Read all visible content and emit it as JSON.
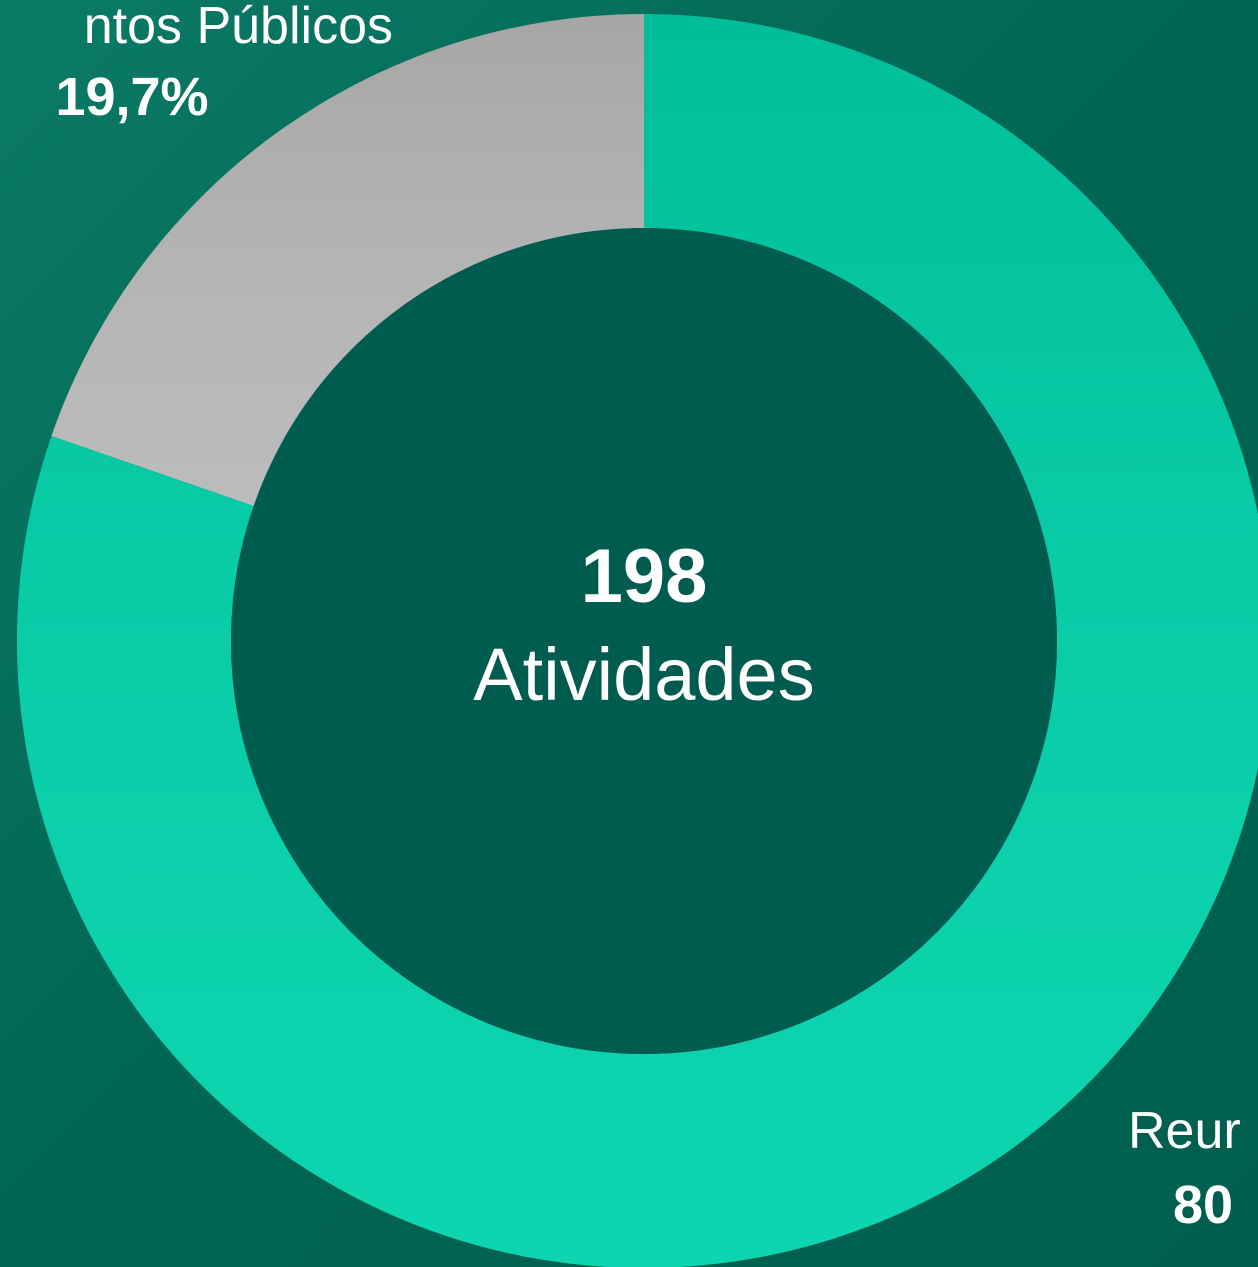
{
  "chart_data": {
    "type": "donut",
    "center_value": "198",
    "center_label": "Atividades",
    "categories": [
      "ntos Públicos",
      "Reur"
    ],
    "values": [
      19.7,
      80.3
    ],
    "value_labels": [
      "19,7%",
      "80"
    ],
    "colors": [
      "#b8b8b8",
      "#00d3ab"
    ]
  }
}
